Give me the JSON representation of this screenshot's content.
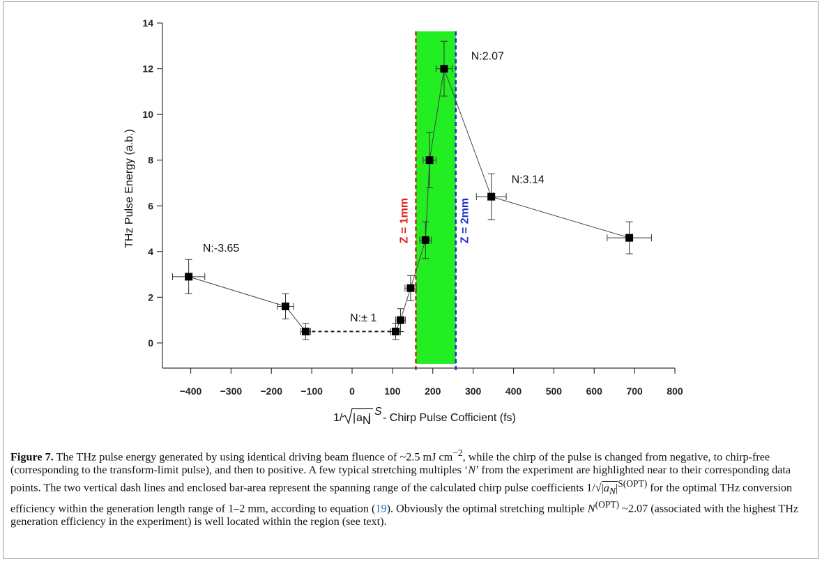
{
  "chart_data": {
    "type": "scatter",
    "ylabel": "THz Pulse Energy (a.b.)",
    "xlabel_prefix": "1/",
    "xlabel_rest": "- Chirp Pulse Cofficient (fs)",
    "xlabel_symbol": "a",
    "xlabel_subscript": "N",
    "xlabel_superscript": "S",
    "xlim": [
      -470,
      800
    ],
    "ylim": [
      -1.1,
      14
    ],
    "xticks": [
      -400,
      -300,
      -200,
      -100,
      0,
      100,
      200,
      300,
      400,
      500,
      600,
      700,
      800
    ],
    "yticks": [
      0,
      2,
      4,
      6,
      8,
      10,
      12,
      14
    ],
    "xtick_labels": [
      "−400",
      "−300",
      "−200",
      "−100",
      "0",
      "100",
      "200",
      "300",
      "400",
      "500",
      "600",
      "700",
      "800"
    ],
    "ytick_labels": [
      "0",
      "2",
      "4",
      "6",
      "8",
      "10",
      "12",
      "14"
    ],
    "grid": false,
    "series": [
      {
        "style": "solid-markers",
        "points": [
          {
            "x": -405,
            "y": 2.9,
            "xerr": 40,
            "yerr": 0.75
          },
          {
            "x": -165,
            "y": 1.6,
            "xerr": 20,
            "yerr": 0.55
          },
          {
            "x": -115,
            "y": 0.5,
            "xerr": 12,
            "yerr": 0.35
          },
          {
            "x": 108,
            "y": 0.5,
            "xerr": 12,
            "yerr": 0.35
          },
          {
            "x": 120,
            "y": 1.0,
            "xerr": 12,
            "yerr": 0.5
          },
          {
            "x": 145,
            "y": 2.4,
            "xerr": 14,
            "yerr": 0.55
          },
          {
            "x": 182,
            "y": 4.5,
            "xerr": 14,
            "yerr": 0.8
          },
          {
            "x": 192,
            "y": 8.0,
            "xerr": 16,
            "yerr": 1.2
          },
          {
            "x": 228,
            "y": 12.0,
            "xerr": 20,
            "yerr": 1.2
          },
          {
            "x": 345,
            "y": 6.4,
            "xerr": 37,
            "yerr": 1.0
          },
          {
            "x": 687,
            "y": 4.6,
            "xerr": 55,
            "yerr": 0.7
          }
        ]
      }
    ],
    "dashed_connector": {
      "from_index": 2,
      "to_index": 3
    },
    "shaded_band": {
      "x_start": 158,
      "x_end": 257,
      "color": "#22ee22",
      "left_line_color": "#e02020",
      "right_line_color": "#2030d0"
    },
    "band_labels": {
      "left": "Z = 1mm",
      "right": "Z = 2mm"
    },
    "annotations": [
      {
        "text": "N:-3.65",
        "x": -370,
        "y": 4.0
      },
      {
        "text": "N:± 1",
        "x": -5,
        "y": 0.95
      },
      {
        "text": "N:2.07",
        "x": 295,
        "y": 12.4
      },
      {
        "text": "N:3.14",
        "x": 395,
        "y": 7.0
      }
    ]
  },
  "caption": {
    "label": "Figure 7.",
    "part1": " The THz pulse energy generated by using identical driving beam fluence of ~2.5 mJ cm",
    "part1_sup": "−2",
    "part2": ", while the chirp of the pulse is changed from negative, to chirp-free (corresponding to the transform-limit pulse), and then to positive. A few typical stretching multiples ‘",
    "part2_N": "N",
    "part3": "’ from the experiment are highlighted near to their corresponding data points. The two vertical dash lines and enclosed bar-area represent the spanning range of the calculated chirp pulse coefficients 1/",
    "part3_sym": "a",
    "part3_sub": "N",
    "part3_sup": "S(OPT)",
    "part4": " for the optimal THz conversion efficiency within the generation length range of 1–2 mm, according to equation (",
    "eq_ref": "19",
    "part5": "). Obviously the optimal stretching multiple ",
    "part5_N": "N",
    "part5_sup": "(OPT)",
    "part6": " ~2.07 (associated with the highest THz generation efficiency in the experiment) is well located within the region (see text)."
  }
}
